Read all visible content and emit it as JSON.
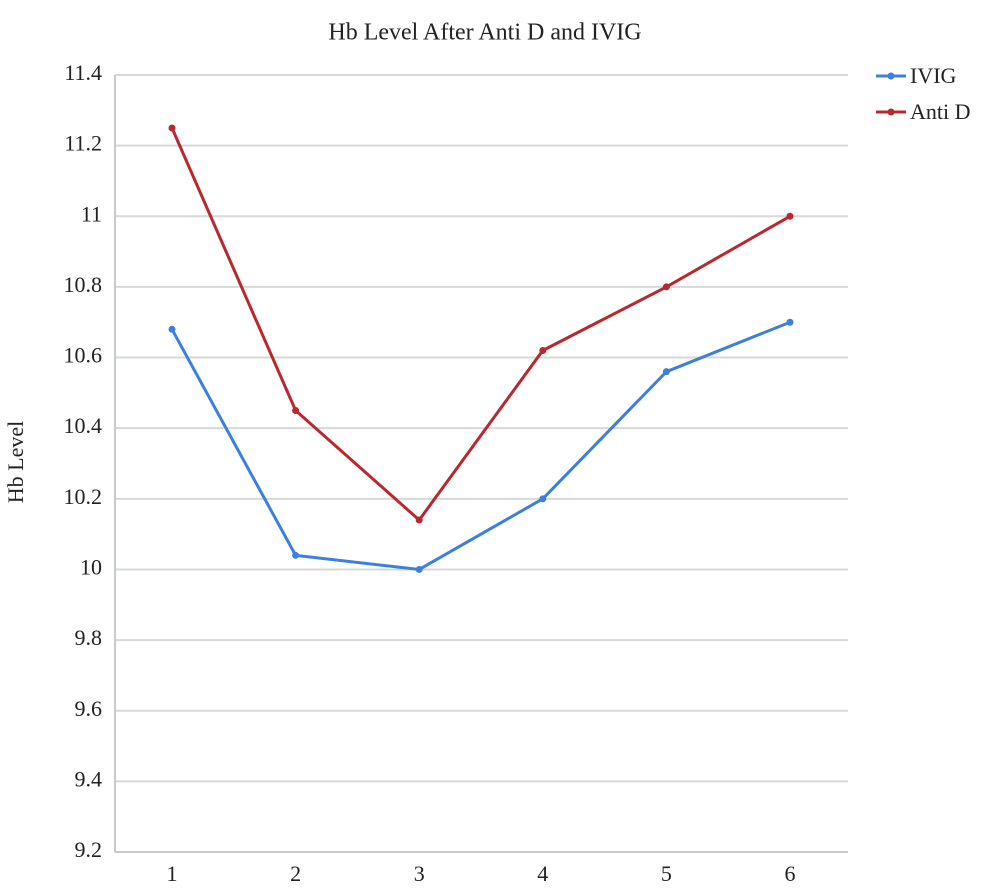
{
  "chart_data": {
    "type": "line",
    "title": "Hb Level After Anti D and IVIG",
    "y_label": "Hb Level",
    "categories": [
      "1",
      "2",
      "3",
      "4",
      "5",
      "6"
    ],
    "series": [
      {
        "name": "IVIG",
        "color": "#3d7fe0",
        "values": [
          10.68,
          10.04,
          10.0,
          10.2,
          10.56,
          10.7
        ]
      },
      {
        "name": "Anti D",
        "color": "#b8282e",
        "values": [
          11.25,
          10.45,
          10.14,
          10.62,
          10.8,
          11.0
        ]
      }
    ],
    "ylim": [
      9.2,
      11.4
    ],
    "yticks": [
      9.2,
      9.4,
      9.6,
      9.8,
      10,
      10.2,
      10.4,
      10.6,
      10.8,
      11,
      11.2,
      11.4
    ],
    "grid": true,
    "legend": "right"
  }
}
